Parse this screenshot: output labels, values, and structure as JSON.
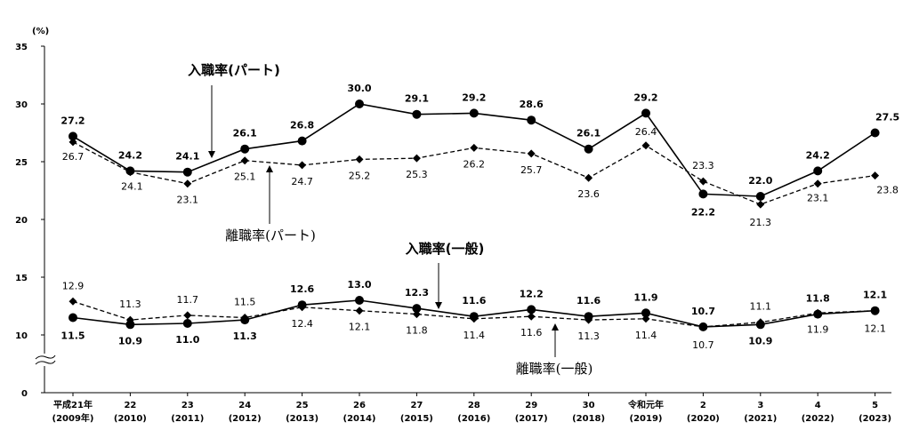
{
  "chart_data": {
    "type": "line",
    "y_unit": "(%)",
    "ylim": [
      0,
      35
    ],
    "y_ticks": [
      0,
      10,
      15,
      20,
      25,
      30,
      35
    ],
    "y_axis_break": "between 0 and 10",
    "grid": false,
    "categories": [
      [
        "平成21年",
        "(2009年)"
      ],
      [
        "22",
        "(2010)"
      ],
      [
        "23",
        "(2011)"
      ],
      [
        "24",
        "(2012)"
      ],
      [
        "25",
        "(2013)"
      ],
      [
        "26",
        "(2014)"
      ],
      [
        "27",
        "(2015)"
      ],
      [
        "28",
        "(2016)"
      ],
      [
        "29",
        "(2017)"
      ],
      [
        "30",
        "(2018)"
      ],
      [
        "令和元年",
        "(2019)"
      ],
      [
        "2",
        "(2020)"
      ],
      [
        "3",
        "(2021)"
      ],
      [
        "4",
        "(2022)"
      ],
      [
        "5",
        "(2023)"
      ]
    ],
    "series": [
      {
        "name": "入職率(パート)",
        "style": "solid",
        "marker": "circle",
        "color": "#000000",
        "values": [
          27.2,
          24.2,
          24.1,
          26.1,
          26.8,
          30.0,
          29.1,
          29.2,
          28.6,
          26.1,
          29.2,
          22.2,
          22.0,
          24.2,
          27.5
        ],
        "labels": [
          "27.2",
          "24.2",
          "24.1",
          "26.1",
          "26.8",
          "30.0",
          "29.1",
          "29.2",
          "28.6",
          "26.1",
          "29.2",
          "22.2",
          "22.0",
          "24.2",
          "27.5"
        ]
      },
      {
        "name": "離職率(パート)",
        "style": "dashed",
        "marker": "diamond",
        "color": "#000000",
        "values": [
          26.7,
          24.1,
          23.1,
          25.1,
          24.7,
          25.2,
          25.3,
          26.2,
          25.7,
          23.6,
          26.4,
          23.3,
          21.3,
          23.1,
          23.8
        ],
        "labels": [
          "26.7",
          "24.1",
          "23.1",
          "25.1",
          "24.7",
          "25.2",
          "25.3",
          "26.2",
          "25.7",
          "23.6",
          "26.4",
          "23.3",
          "21.3",
          "23.1",
          "23.8"
        ]
      },
      {
        "name": "入職率(一般)",
        "style": "solid",
        "marker": "circle",
        "color": "#000000",
        "values": [
          11.5,
          10.9,
          11.0,
          11.3,
          12.6,
          13.0,
          12.3,
          11.6,
          12.2,
          11.6,
          11.9,
          10.7,
          10.9,
          11.8,
          12.1
        ],
        "labels": [
          "11.5",
          "10.9",
          "11.0",
          "11.3",
          "12.6",
          "13.0",
          "12.3",
          "11.6",
          "12.2",
          "11.6",
          "11.9",
          "10.7",
          "10.9",
          "11.8",
          "12.1"
        ]
      },
      {
        "name": "離職率(一般)",
        "style": "dashed",
        "marker": "diamond",
        "color": "#000000",
        "values": [
          12.9,
          11.3,
          11.7,
          11.5,
          12.4,
          12.1,
          11.8,
          11.4,
          11.6,
          11.3,
          11.4,
          10.7,
          11.1,
          11.9,
          12.1
        ],
        "labels": [
          "12.9",
          "11.3",
          "11.7",
          "11.5",
          "12.4",
          "12.1",
          "11.8",
          "11.4",
          "11.6",
          "11.3",
          "11.4",
          "10.7",
          "11.1",
          "11.9",
          "12.1"
        ]
      }
    ],
    "annotations": [
      {
        "text": "入職率(パート)",
        "series": 0
      },
      {
        "text": "離職率(パート)",
        "series": 1
      },
      {
        "text": "入職率(一般)",
        "series": 2
      },
      {
        "text": "離職率(一般)",
        "series": 3
      }
    ]
  }
}
